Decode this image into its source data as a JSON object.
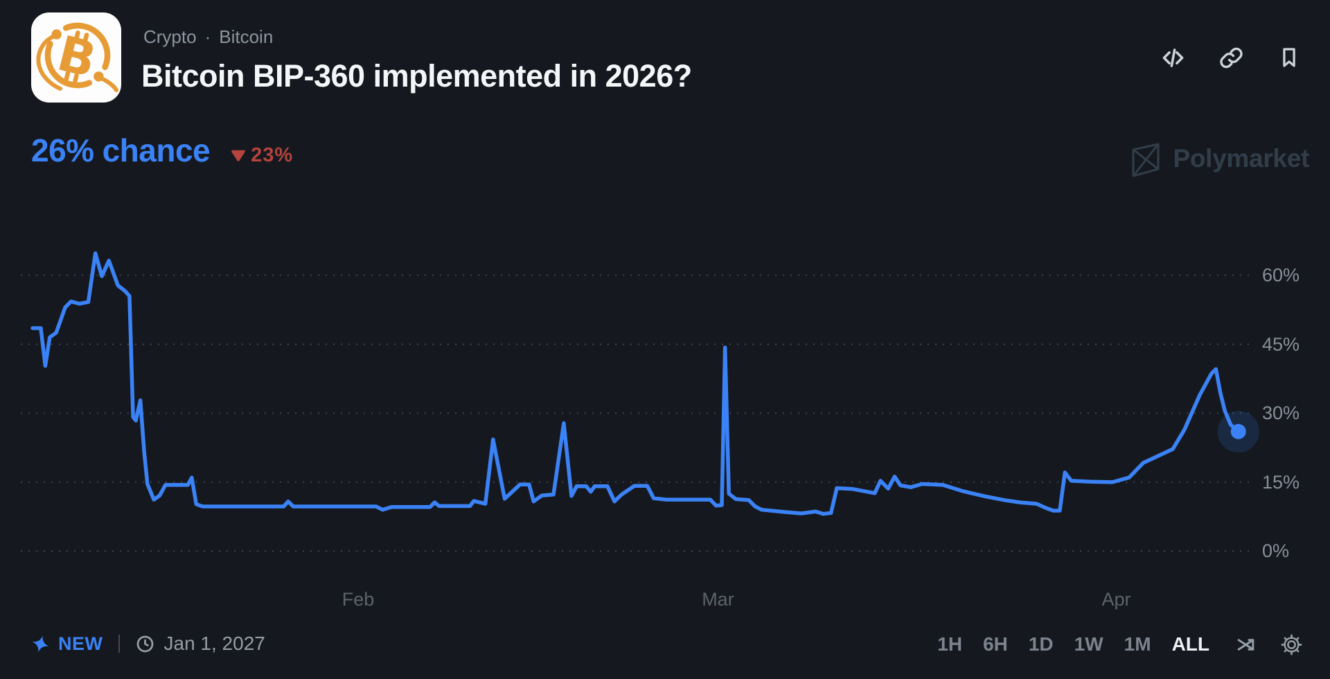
{
  "header": {
    "breadcrumb": {
      "category": "Crypto",
      "separator": "·",
      "topic": "Bitcoin"
    },
    "title": "Bitcoin BIP-360 implemented in 2026?",
    "logo": {
      "symbol": "B",
      "color": "#e79b35"
    }
  },
  "market": {
    "chance_value": "26%",
    "chance_label": "chance",
    "change_direction": "down",
    "change_value": "23%",
    "chance_color": "#3b82f6",
    "change_color": "#b5433e"
  },
  "watermark": {
    "text": "Polymarket"
  },
  "chart_data": {
    "type": "line",
    "title": "Bitcoin BIP-360 implemented in 2026?",
    "x_unit": "days since Jan 1",
    "x_domain": [
      5.2,
      101
    ],
    "ylim": [
      0,
      66
    ],
    "grid": "dotted-horizontal",
    "legend": "none",
    "y_ticks": [
      {
        "value": 60,
        "label": "60%"
      },
      {
        "value": 45,
        "label": "45%"
      },
      {
        "value": 30,
        "label": "30%"
      },
      {
        "value": 15,
        "label": "15%"
      },
      {
        "value": 0,
        "label": "0%"
      }
    ],
    "x_ticks": [
      {
        "pos": 31,
        "label": "Feb"
      },
      {
        "pos": 59,
        "label": "Mar"
      },
      {
        "pos": 90,
        "label": "Apr"
      }
    ],
    "series": [
      {
        "name": "Yes",
        "color": "#3b82f6",
        "points": [
          [
            5.66,
            48.5
          ],
          [
            6.3,
            48.5
          ],
          [
            6.65,
            40.3
          ],
          [
            7.0,
            46.5
          ],
          [
            7.5,
            47.5
          ],
          [
            8.2,
            53.0
          ],
          [
            8.65,
            54.3
          ],
          [
            9.3,
            53.8
          ],
          [
            10.0,
            54.2
          ],
          [
            10.55,
            64.8
          ],
          [
            11.05,
            59.8
          ],
          [
            11.6,
            63.2
          ],
          [
            12.3,
            57.8
          ],
          [
            12.85,
            56.6
          ],
          [
            13.2,
            55.5
          ],
          [
            13.48,
            29.2
          ],
          [
            13.7,
            28.4
          ],
          [
            14.05,
            32.8
          ],
          [
            14.35,
            21.5
          ],
          [
            14.6,
            14.6
          ],
          [
            15.1,
            11.2
          ],
          [
            15.55,
            12.1
          ],
          [
            16.0,
            14.4
          ],
          [
            17.75,
            14.4
          ],
          [
            18.05,
            16.0
          ],
          [
            18.4,
            10.2
          ],
          [
            18.9,
            9.7
          ],
          [
            25.2,
            9.7
          ],
          [
            25.55,
            10.8
          ],
          [
            25.95,
            9.7
          ],
          [
            32.4,
            9.7
          ],
          [
            32.9,
            9.0
          ],
          [
            33.6,
            9.6
          ],
          [
            36.6,
            9.6
          ],
          [
            36.95,
            10.6
          ],
          [
            37.3,
            9.8
          ],
          [
            39.7,
            9.8
          ],
          [
            40.0,
            10.9
          ],
          [
            40.9,
            10.3
          ],
          [
            41.5,
            24.3
          ],
          [
            42.4,
            11.4
          ],
          [
            43.6,
            14.5
          ],
          [
            44.3,
            14.5
          ],
          [
            44.65,
            10.8
          ],
          [
            45.3,
            12.1
          ],
          [
            46.2,
            12.3
          ],
          [
            47.0,
            27.8
          ],
          [
            47.6,
            12.0
          ],
          [
            48.0,
            14.1
          ],
          [
            48.75,
            14.1
          ],
          [
            49.1,
            12.9
          ],
          [
            49.4,
            14.1
          ],
          [
            50.4,
            14.1
          ],
          [
            50.95,
            10.8
          ],
          [
            51.5,
            12.3
          ],
          [
            52.5,
            14.2
          ],
          [
            53.5,
            14.2
          ],
          [
            54.0,
            11.5
          ],
          [
            55.0,
            11.2
          ],
          [
            58.4,
            11.2
          ],
          [
            58.85,
            9.9
          ],
          [
            59.3,
            10.0
          ],
          [
            59.55,
            44.3
          ],
          [
            59.85,
            12.5
          ],
          [
            60.4,
            11.3
          ],
          [
            61.4,
            11.1
          ],
          [
            61.9,
            9.7
          ],
          [
            62.4,
            9.0
          ],
          [
            64.2,
            8.5
          ],
          [
            65.5,
            8.2
          ],
          [
            66.6,
            8.6
          ],
          [
            67.2,
            8.1
          ],
          [
            67.8,
            8.3
          ],
          [
            68.25,
            13.7
          ],
          [
            69.5,
            13.5
          ],
          [
            71.2,
            12.6
          ],
          [
            71.65,
            15.3
          ],
          [
            72.25,
            13.6
          ],
          [
            72.75,
            16.2
          ],
          [
            73.2,
            14.3
          ],
          [
            74.0,
            13.9
          ],
          [
            74.9,
            14.6
          ],
          [
            76.5,
            14.4
          ],
          [
            78.1,
            13.0
          ],
          [
            79.8,
            11.9
          ],
          [
            81.3,
            11.1
          ],
          [
            82.5,
            10.6
          ],
          [
            83.8,
            10.3
          ],
          [
            84.5,
            9.4
          ],
          [
            85.1,
            8.8
          ],
          [
            85.6,
            8.8
          ],
          [
            86.0,
            17.1
          ],
          [
            86.5,
            15.3
          ],
          [
            88.0,
            15.1
          ],
          [
            89.7,
            15.0
          ],
          [
            91.0,
            16.0
          ],
          [
            92.1,
            19.2
          ],
          [
            94.4,
            22.2
          ],
          [
            95.3,
            26.4
          ],
          [
            96.5,
            34.0
          ],
          [
            97.4,
            38.6
          ],
          [
            97.75,
            39.6
          ],
          [
            98.1,
            34.4
          ],
          [
            98.45,
            30.5
          ],
          [
            98.9,
            27.5
          ],
          [
            99.5,
            26.0
          ]
        ]
      }
    ],
    "endpoint": {
      "pos": 99.5,
      "value": 26
    }
  },
  "footer": {
    "new_label": "NEW",
    "date": "Jan 1, 2027",
    "timeframes": [
      "1H",
      "6H",
      "1D",
      "1W",
      "1M",
      "ALL"
    ],
    "selected_timeframe": "ALL"
  }
}
